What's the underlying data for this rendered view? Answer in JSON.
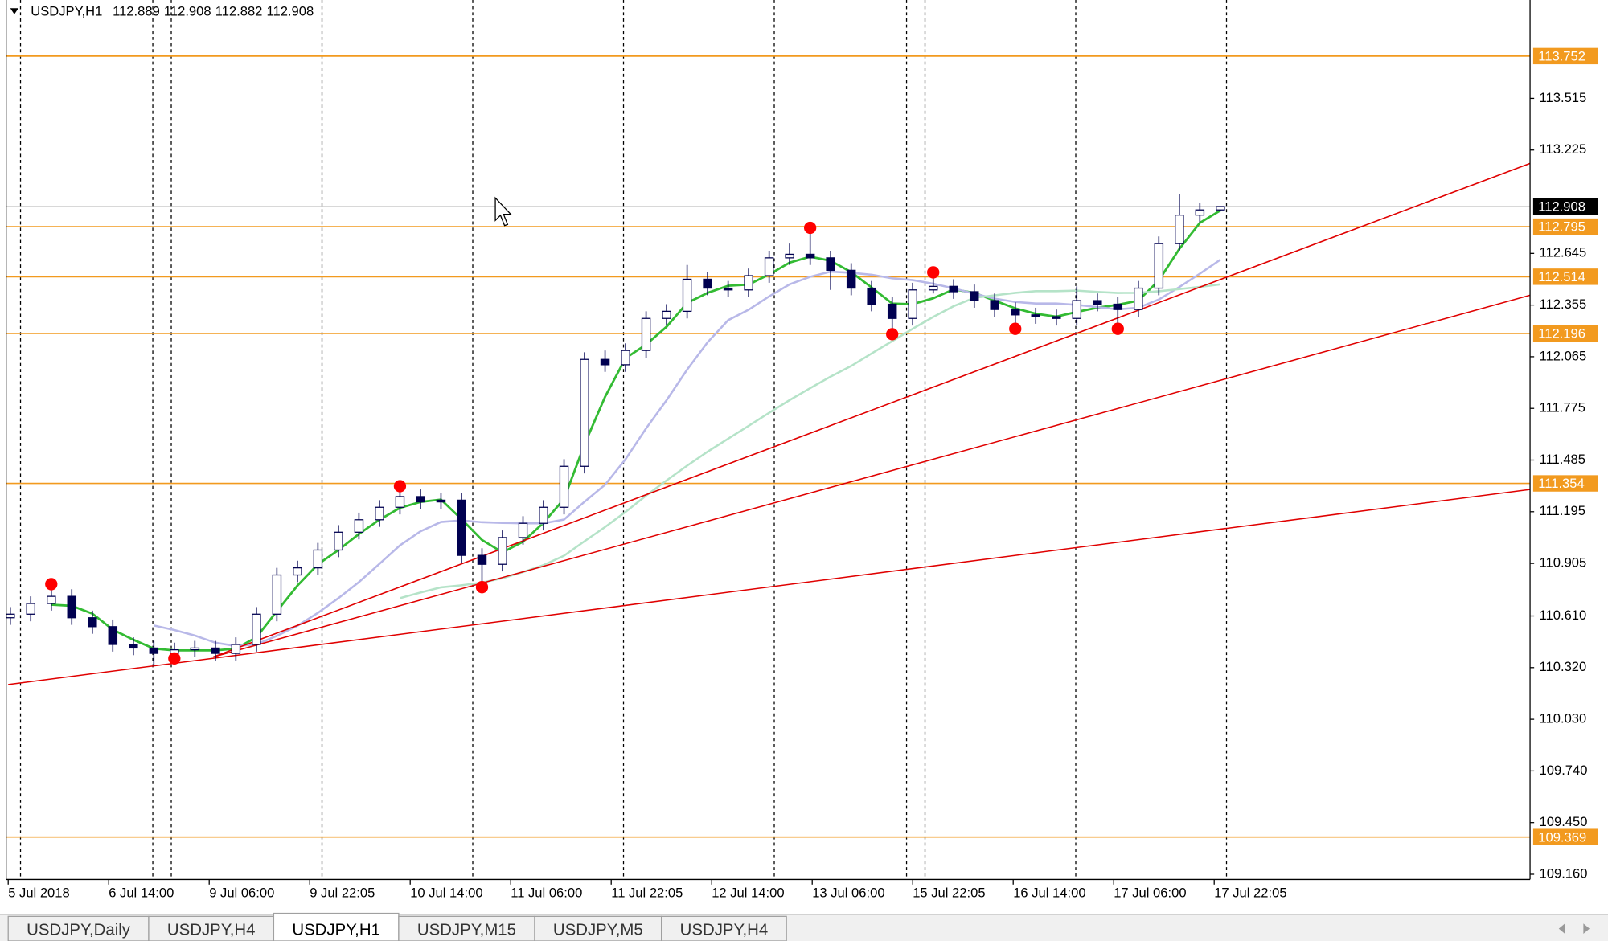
{
  "chart_data": {
    "type": "candlestick",
    "symbol": "USDJPY,H1",
    "ylim": [
      109.131,
      114.067
    ],
    "yticks": [
      113.515,
      113.225,
      112.645,
      112.355,
      112.065,
      111.775,
      111.485,
      111.195,
      110.905,
      {
        "value": 110.61,
        "label": "110.610"
      },
      {
        "value": 110.32,
        "label": "110.320"
      },
      {
        "value": 110.03,
        "label": "110.030"
      },
      {
        "value": 109.74,
        "label": "109.740"
      },
      {
        "value": 109.45,
        "label": "109.450"
      },
      {
        "value": 109.16,
        "label": "109.160"
      }
    ],
    "xlabels": [
      "5 Jul 2018",
      "6 Jul 14:00",
      "9 Jul 06:00",
      "9 Jul 22:05",
      "10 Jul 14:00",
      "11 Jul 06:00",
      "11 Jul 22:05",
      "12 Jul 14:00",
      "13 Jul 06:00",
      "15 Jul 22:05",
      "16 Jul 14:00",
      "17 Jul 06:00",
      "17 Jul 22:05"
    ],
    "ohlc": [
      [
        110.6,
        110.66,
        110.56,
        110.62
      ],
      [
        110.62,
        110.72,
        110.58,
        110.68
      ],
      [
        110.68,
        110.8,
        110.64,
        110.72
      ],
      [
        110.72,
        110.76,
        110.56,
        110.6
      ],
      [
        110.6,
        110.64,
        110.51,
        110.55
      ],
      [
        110.55,
        110.59,
        110.41,
        110.45
      ],
      [
        110.45,
        110.49,
        110.39,
        110.43
      ],
      [
        110.43,
        110.47,
        110.33,
        110.4
      ],
      [
        110.4,
        110.46,
        110.36,
        110.42
      ],
      [
        110.42,
        110.47,
        110.38,
        110.43
      ],
      [
        110.43,
        110.47,
        110.36,
        110.4
      ],
      [
        110.4,
        110.49,
        110.36,
        110.45
      ],
      [
        110.45,
        110.66,
        110.41,
        110.62
      ],
      [
        110.62,
        110.88,
        110.58,
        110.84
      ],
      [
        110.84,
        110.92,
        110.8,
        110.88
      ],
      [
        110.88,
        111.02,
        110.84,
        110.98
      ],
      [
        110.98,
        111.12,
        110.94,
        111.08
      ],
      [
        111.08,
        111.19,
        111.04,
        111.15
      ],
      [
        111.15,
        111.26,
        111.11,
        111.22
      ],
      [
        111.22,
        111.35,
        111.18,
        111.28
      ],
      [
        111.28,
        111.32,
        111.21,
        111.25
      ],
      [
        111.25,
        111.3,
        111.21,
        111.26
      ],
      [
        111.26,
        111.3,
        110.91,
        110.95
      ],
      [
        110.95,
        110.99,
        110.76,
        110.9
      ],
      [
        110.9,
        111.09,
        110.86,
        111.05
      ],
      [
        111.05,
        111.17,
        111.01,
        111.13
      ],
      [
        111.13,
        111.26,
        111.09,
        111.22
      ],
      [
        111.22,
        111.49,
        111.18,
        111.45
      ],
      [
        111.45,
        112.09,
        111.41,
        112.05
      ],
      [
        112.05,
        112.1,
        111.98,
        112.02
      ],
      [
        112.02,
        112.14,
        111.98,
        112.1
      ],
      [
        112.1,
        112.32,
        112.06,
        112.28
      ],
      [
        112.28,
        112.36,
        112.24,
        112.32
      ],
      [
        112.32,
        112.58,
        112.28,
        112.5
      ],
      [
        112.5,
        112.54,
        112.41,
        112.45
      ],
      [
        112.45,
        112.49,
        112.4,
        112.44
      ],
      [
        112.44,
        112.56,
        112.4,
        112.52
      ],
      [
        112.52,
        112.66,
        112.48,
        112.62
      ],
      [
        112.62,
        112.7,
        112.58,
        112.64
      ],
      [
        112.64,
        112.8,
        112.58,
        112.62
      ],
      [
        112.62,
        112.66,
        112.44,
        112.55
      ],
      [
        112.55,
        112.59,
        112.41,
        112.45
      ],
      [
        112.45,
        112.49,
        112.32,
        112.36
      ],
      [
        112.36,
        112.4,
        112.18,
        112.28
      ],
      [
        112.28,
        112.48,
        112.24,
        112.44
      ],
      [
        112.44,
        112.55,
        112.42,
        112.46
      ],
      [
        112.46,
        112.5,
        112.39,
        112.43
      ],
      [
        112.43,
        112.47,
        112.34,
        112.38
      ],
      [
        112.38,
        112.42,
        112.29,
        112.33
      ],
      [
        112.33,
        112.37,
        112.21,
        112.3
      ],
      [
        112.3,
        112.34,
        112.25,
        112.29
      ],
      [
        112.29,
        112.33,
        112.24,
        112.28
      ],
      [
        112.28,
        112.46,
        112.24,
        112.38
      ],
      [
        112.38,
        112.42,
        112.32,
        112.36
      ],
      [
        112.36,
        112.4,
        112.21,
        112.33
      ],
      [
        112.33,
        112.49,
        112.29,
        112.45
      ],
      [
        112.45,
        112.74,
        112.41,
        112.7
      ],
      [
        112.7,
        112.98,
        112.66,
        112.86
      ],
      [
        112.86,
        112.93,
        112.82,
        112.889
      ],
      [
        112.889,
        112.908,
        112.882,
        112.908
      ]
    ],
    "bull_color": "#ffffff",
    "bear_color": "#000050",
    "wick_color": "#000050",
    "moving_averages": [
      {
        "period": 3,
        "color": "#33bb33"
      },
      {
        "period": 8,
        "color": "#b8b8e8"
      },
      {
        "period": 20,
        "color": "#b5e3c8"
      }
    ],
    "levels": [
      113.752,
      112.795,
      112.514,
      112.196,
      111.354,
      109.369
    ],
    "level_color": "#f29a1f",
    "trendlines": [
      {
        "from": [
          0,
          110.225
        ],
        "to": [
          74,
          111.32
        ]
      },
      {
        "from": [
          10,
          110.38
        ],
        "to": [
          74,
          112.41
        ]
      },
      {
        "from": [
          10,
          110.38
        ],
        "to": [
          74,
          113.15
        ]
      }
    ],
    "trendline_color": "#e00000",
    "fractal_highs": [
      2,
      19,
      39,
      45
    ],
    "fractal_lows": [
      8,
      23,
      43,
      49,
      54
    ],
    "fractal_color": "#ff0000",
    "vlines": [
      0.5,
      6.95,
      7.85,
      15.2,
      22.55,
      29.9,
      37.25,
      43.7,
      44.6,
      51.95,
      59.3
    ],
    "tabs": [
      "USDJPY,Daily",
      "USDJPY,H4",
      "USDJPY,H1",
      "USDJPY,M15",
      "USDJPY,M5",
      "USDJPY,H4"
    ],
    "active_tab": 2
  }
}
